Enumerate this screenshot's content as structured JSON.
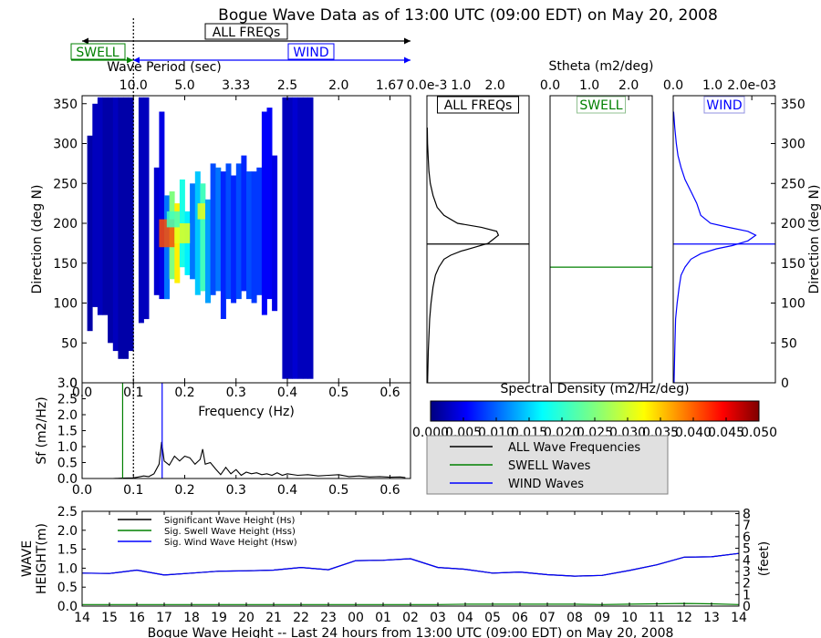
{
  "title": "Bogue Wave Data as of 13:00 UTC (09:00 EDT) on May 20, 2008",
  "legend_top": {
    "all": "ALL FREQs",
    "swell": "SWELL",
    "wind": "WIND"
  },
  "colors": {
    "swell": "#008000",
    "wind": "#0000ff",
    "all": "#000000"
  },
  "chart_data": [
    {
      "id": "direction-spectrum",
      "type": "heatmap",
      "xlabel": "Frequency (Hz)",
      "ylabel": "Direction (deg N)",
      "top_xlabel": "Wave Period (sec)",
      "xlim": [
        0,
        0.64
      ],
      "ylim": [
        0,
        360
      ],
      "xticks": [
        "0.0",
        "0.1",
        "0.2",
        "0.3",
        "0.4",
        "0.5",
        "0.6"
      ],
      "xtick_values": [
        0,
        0.1,
        0.2,
        0.3,
        0.4,
        0.5,
        0.6
      ],
      "yticks": [
        "0",
        "50",
        "100",
        "150",
        "200",
        "250",
        "300",
        "350"
      ],
      "ytick_values": [
        0,
        50,
        100,
        150,
        200,
        250,
        300,
        350
      ],
      "top_ticks": [
        "10.0",
        "5.0",
        "3.33",
        "2.5",
        "2.0",
        "1.67"
      ],
      "top_tick_values": [
        0.1,
        0.2,
        0.3,
        0.4,
        0.5,
        0.6
      ],
      "separation_frequency": 0.1,
      "columns": [
        [
          0.01,
          0.02,
          65,
          310,
          0.002
        ],
        [
          0.02,
          0.03,
          95,
          350,
          0.003
        ],
        [
          0.03,
          0.04,
          85,
          358,
          0.003
        ],
        [
          0.04,
          0.05,
          85,
          358,
          0.002
        ],
        [
          0.05,
          0.06,
          50,
          358,
          0.002
        ],
        [
          0.06,
          0.07,
          40,
          358,
          0.003
        ],
        [
          0.07,
          0.08,
          30,
          358,
          0.002
        ],
        [
          0.08,
          0.09,
          30,
          358,
          0.002
        ],
        [
          0.09,
          0.1,
          40,
          358,
          0.002
        ],
        [
          0.11,
          0.12,
          75,
          358,
          0.003
        ],
        [
          0.12,
          0.13,
          80,
          358,
          0.003
        ],
        [
          0.14,
          0.15,
          110,
          270,
          0.004
        ],
        [
          0.15,
          0.16,
          105,
          340,
          0.005
        ],
        [
          0.16,
          0.17,
          105,
          235,
          0.012
        ],
        [
          0.17,
          0.18,
          130,
          240,
          0.025
        ],
        [
          0.18,
          0.19,
          125,
          225,
          0.032
        ],
        [
          0.19,
          0.2,
          145,
          255,
          0.02
        ],
        [
          0.2,
          0.21,
          135,
          215,
          0.018
        ],
        [
          0.21,
          0.22,
          130,
          250,
          0.012
        ],
        [
          0.22,
          0.23,
          110,
          265,
          0.016
        ],
        [
          0.23,
          0.24,
          115,
          250,
          0.022
        ],
        [
          0.24,
          0.25,
          100,
          230,
          0.014
        ],
        [
          0.25,
          0.26,
          110,
          275,
          0.01
        ],
        [
          0.26,
          0.27,
          115,
          270,
          0.012
        ],
        [
          0.27,
          0.28,
          80,
          265,
          0.008
        ],
        [
          0.28,
          0.29,
          105,
          275,
          0.01
        ],
        [
          0.29,
          0.3,
          100,
          260,
          0.008
        ],
        [
          0.3,
          0.31,
          105,
          275,
          0.01
        ],
        [
          0.31,
          0.32,
          115,
          285,
          0.008
        ],
        [
          0.32,
          0.33,
          105,
          265,
          0.01
        ],
        [
          0.33,
          0.34,
          100,
          265,
          0.009
        ],
        [
          0.34,
          0.35,
          110,
          270,
          0.009
        ],
        [
          0.35,
          0.36,
          85,
          340,
          0.006
        ],
        [
          0.36,
          0.37,
          105,
          345,
          0.006
        ],
        [
          0.37,
          0.38,
          90,
          285,
          0.005
        ],
        [
          0.39,
          0.4,
          5,
          358,
          0.003
        ],
        [
          0.4,
          0.41,
          5,
          358,
          0.003
        ],
        [
          0.41,
          0.42,
          5,
          358,
          0.004
        ],
        [
          0.42,
          0.43,
          5,
          358,
          0.003
        ],
        [
          0.43,
          0.44,
          5,
          358,
          0.003
        ],
        [
          0.44,
          0.45,
          5,
          358,
          0.003
        ]
      ],
      "hotspots": [
        [
          0.15,
          0.18,
          170,
          205,
          0.04
        ],
        [
          0.18,
          0.21,
          175,
          200,
          0.03
        ],
        [
          0.225,
          0.24,
          205,
          225,
          0.03
        ],
        [
          0.165,
          0.19,
          195,
          215,
          0.022
        ]
      ]
    },
    {
      "id": "stheta-all",
      "type": "line",
      "title": "ALL FREQs",
      "top_xlabel": "Stheta (m2/deg)",
      "xlim": [
        0,
        3
      ],
      "xticks": [
        "0.0e-3",
        "1.0",
        "2.0"
      ],
      "xtick_values": [
        0,
        1,
        2
      ],
      "ylim": [
        0,
        360
      ],
      "mean_direction": 174,
      "x": [
        0.02,
        0.04,
        0.08,
        0.12,
        0.18,
        0.25,
        0.35,
        0.5,
        0.7,
        1.0,
        1.4,
        1.8,
        2.1,
        2.05,
        1.6,
        0.9,
        0.5,
        0.3,
        0.18,
        0.1,
        0.06,
        0.04,
        0.02,
        0.01
      ],
      "y": [
        0,
        40,
        80,
        100,
        120,
        135,
        145,
        155,
        160,
        165,
        170,
        175,
        185,
        190,
        195,
        200,
        210,
        220,
        235,
        250,
        265,
        280,
        300,
        320
      ]
    },
    {
      "id": "stheta-swell",
      "type": "line",
      "title": "SWELL",
      "xticks": [
        "0.0",
        "1.0",
        "2.0"
      ],
      "xtick_values": [
        0,
        1,
        2
      ],
      "xlim": [
        0,
        2.6
      ],
      "ylim": [
        0,
        360
      ],
      "mean_direction": 145,
      "x": [],
      "y": []
    },
    {
      "id": "stheta-wind",
      "type": "line",
      "title": "WIND",
      "xlim": [
        0,
        2.6
      ],
      "xticks": [
        "0.0",
        "1.0",
        "2.0e-03"
      ],
      "xtick_values": [
        0,
        1,
        2
      ],
      "ylabel": "Direction (deg N)",
      "yticks": [
        "0",
        "50",
        "100",
        "150",
        "200",
        "250",
        "300",
        "350"
      ],
      "ytick_values": [
        0,
        50,
        100,
        150,
        200,
        250,
        300,
        350
      ],
      "ylim": [
        0,
        360
      ],
      "mean_direction": 174,
      "x": [
        0.02,
        0.04,
        0.06,
        0.1,
        0.15,
        0.2,
        0.3,
        0.45,
        0.7,
        1.1,
        1.5,
        1.9,
        2.1,
        1.9,
        1.4,
        0.95,
        0.7,
        0.6,
        0.45,
        0.3,
        0.2,
        0.12,
        0.08,
        0.04,
        0.01
      ],
      "y": [
        0,
        40,
        80,
        100,
        120,
        135,
        145,
        155,
        162,
        168,
        172,
        178,
        185,
        190,
        195,
        200,
        210,
        225,
        240,
        255,
        270,
        285,
        300,
        320,
        340
      ]
    },
    {
      "id": "frequency-spectrum",
      "type": "line",
      "ylabel": "Sf (m2/Hz)",
      "xlim": [
        0,
        0.64
      ],
      "ylim": [
        0,
        3.0
      ],
      "xticks": [
        "0.0",
        "0.1",
        "0.2",
        "0.3",
        "0.4",
        "0.5",
        "0.6"
      ],
      "xtick_values": [
        0,
        0.1,
        0.2,
        0.3,
        0.4,
        0.5,
        0.6
      ],
      "yticks": [
        "0.0",
        "0.5",
        "1.0",
        "1.5",
        "2.0",
        "2.5",
        "3.0"
      ],
      "ytick_values": [
        0,
        0.5,
        1.0,
        1.5,
        2.0,
        2.5,
        3.0
      ],
      "swell_frequency": 0.079,
      "wind_frequency": 0.156,
      "separation_frequency": 0.1,
      "x": [
        0,
        0.02,
        0.04,
        0.06,
        0.08,
        0.1,
        0.11,
        0.12,
        0.13,
        0.14,
        0.15,
        0.155,
        0.16,
        0.17,
        0.18,
        0.19,
        0.2,
        0.21,
        0.22,
        0.23,
        0.235,
        0.24,
        0.25,
        0.26,
        0.27,
        0.28,
        0.29,
        0.3,
        0.31,
        0.32,
        0.33,
        0.34,
        0.35,
        0.36,
        0.37,
        0.38,
        0.39,
        0.4,
        0.42,
        0.44,
        0.46,
        0.48,
        0.5,
        0.52,
        0.54,
        0.56,
        0.58,
        0.6,
        0.62,
        0.63
      ],
      "y": [
        0,
        0,
        0,
        0,
        0.01,
        0.02,
        0.05,
        0.08,
        0.06,
        0.15,
        0.45,
        1.15,
        0.55,
        0.42,
        0.7,
        0.55,
        0.7,
        0.65,
        0.45,
        0.6,
        0.92,
        0.45,
        0.5,
        0.3,
        0.12,
        0.35,
        0.15,
        0.28,
        0.1,
        0.2,
        0.15,
        0.18,
        0.12,
        0.15,
        0.1,
        0.18,
        0.1,
        0.15,
        0.1,
        0.12,
        0.08,
        0.1,
        0.12,
        0.06,
        0.08,
        0.05,
        0.06,
        0.04,
        0.05,
        0.03
      ]
    },
    {
      "id": "spectral-density-colorbar",
      "type": "heatmap",
      "title": "Spectral Density (m2/Hz/deg)",
      "range": [
        0,
        0.05
      ],
      "ticks": [
        "0.000",
        "0.005",
        "0.010",
        "0.015",
        "0.020",
        "0.025",
        "0.030",
        "0.035",
        "0.040",
        "0.045",
        "0.050"
      ],
      "tick_values": [
        0,
        0.005,
        0.01,
        0.015,
        0.02,
        0.025,
        0.03,
        0.035,
        0.04,
        0.045,
        0.05
      ]
    },
    {
      "id": "wave-height-history",
      "type": "line",
      "xlabel": "Bogue Wave Height -- Last 24 hours from 13:00 UTC (09:00 EDT) on May 20, 2008",
      "ylabel_line1": "WAVE",
      "ylabel_line2": "HEIGHT(m)",
      "ylabel_right": "(feet)",
      "ylim": [
        0,
        2.5
      ],
      "yticks": [
        "0.0",
        "0.5",
        "1.0",
        "1.5",
        "2.0",
        "2.5"
      ],
      "ytick_values": [
        0,
        0.5,
        1.0,
        1.5,
        2.0,
        2.5
      ],
      "right_yticks": [
        "0",
        "1",
        "2",
        "3",
        "4",
        "5",
        "6",
        "7",
        "8"
      ],
      "right_tick_values": [
        0,
        1,
        2,
        3,
        4,
        5,
        6,
        7,
        8
      ],
      "right_ylim": [
        0,
        8.2
      ],
      "categories": [
        "14",
        "15",
        "16",
        "17",
        "18",
        "19",
        "20",
        "21",
        "22",
        "23",
        "00",
        "01",
        "02",
        "03",
        "04",
        "05",
        "06",
        "07",
        "08",
        "09",
        "10",
        "11",
        "12",
        "13",
        "14"
      ],
      "legend": [
        "Significant Wave Height (Hs)",
        "Sig. Swell Wave Height (Hss)",
        "Sig. Wind Wave Height (Hsw)"
      ],
      "series": [
        {
          "name": "Significant Wave Height (Hs)",
          "color": "#000000",
          "values": [
            0.87,
            0.86,
            0.95,
            0.82,
            0.87,
            0.92,
            0.93,
            0.95,
            1.02,
            0.96,
            1.2,
            1.21,
            1.25,
            1.02,
            0.97,
            0.87,
            0.9,
            0.83,
            0.79,
            0.81,
            0.94,
            1.09,
            1.29,
            1.3,
            1.39
          ]
        },
        {
          "name": "Sig. Swell Wave Height (Hss)",
          "color": "#008000",
          "values": [
            0.04,
            0.04,
            0.04,
            0.04,
            0.04,
            0.04,
            0.04,
            0.04,
            0.04,
            0.04,
            0.04,
            0.04,
            0.04,
            0.04,
            0.05,
            0.05,
            0.05,
            0.05,
            0.05,
            0.04,
            0.05,
            0.06,
            0.07,
            0.06,
            0.04
          ]
        },
        {
          "name": "Sig. Wind Wave Height (Hsw)",
          "color": "#0000ff",
          "values": [
            0.87,
            0.86,
            0.95,
            0.82,
            0.87,
            0.92,
            0.93,
            0.95,
            1.02,
            0.96,
            1.2,
            1.21,
            1.25,
            1.02,
            0.97,
            0.87,
            0.9,
            0.83,
            0.79,
            0.81,
            0.94,
            1.09,
            1.29,
            1.3,
            1.39
          ]
        }
      ]
    }
  ],
  "legend_panel": [
    {
      "label": "ALL Wave Frequencies",
      "color": "#000000"
    },
    {
      "label": "SWELL Waves",
      "color": "#008000"
    },
    {
      "label": "WIND Waves",
      "color": "#0000ff"
    }
  ]
}
